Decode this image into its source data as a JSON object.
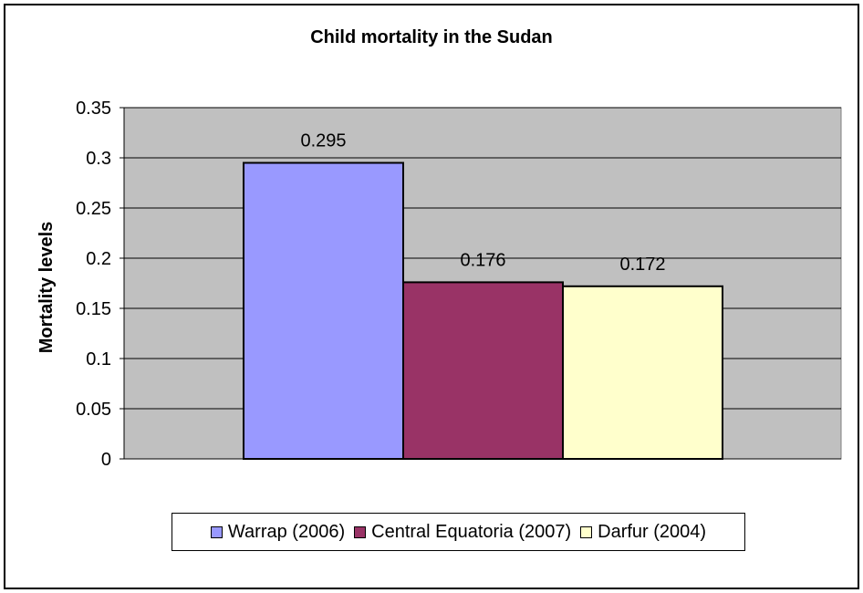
{
  "chart_data": {
    "type": "bar",
    "title": "Child mortality in the Sudan",
    "xlabel": "",
    "ylabel": "Mortality levels",
    "ylim": [
      0,
      0.35
    ],
    "yticks": [
      "0",
      "0.05",
      "0.1",
      "0.15",
      "0.2",
      "0.25",
      "0.3",
      "0.35"
    ],
    "ytick_values": [
      0,
      0.05,
      0.1,
      0.15,
      0.2,
      0.25,
      0.3,
      0.35
    ],
    "grid": true,
    "legend_position": "bottom",
    "plot_background": "#c0c0c0",
    "series": [
      {
        "name": "Warrap (2006)",
        "values": [
          0.295
        ],
        "label": "0.295",
        "color": "#9999ff"
      },
      {
        "name": "Central Equatoria (2007)",
        "values": [
          0.176
        ],
        "label": "0.176",
        "color": "#993366"
      },
      {
        "name": "Darfur (2004)",
        "values": [
          0.172
        ],
        "label": "0.172",
        "color": "#ffffcc"
      }
    ]
  }
}
